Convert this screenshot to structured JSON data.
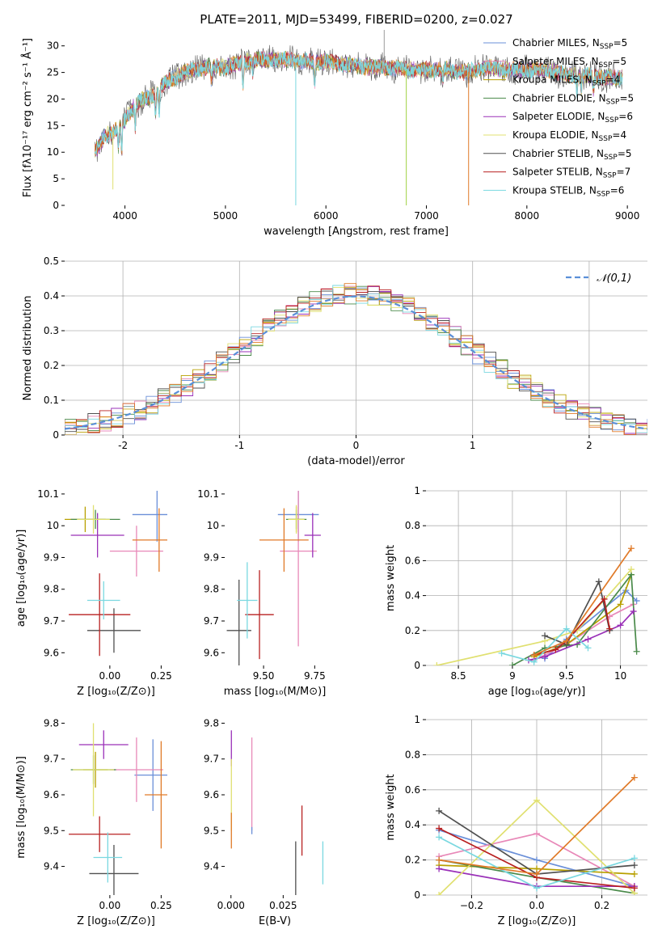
{
  "chart_data": [
    {
      "id": "spectrum",
      "type": "line",
      "title": "PLATE=2011, MJD=53499, FIBERID=0200, z=0.027",
      "xlabel": "wavelength [Angstrom, rest frame]",
      "ylabel": "Flux [fλ10⁻¹⁷ erg cm⁻² s⁻¹ Å⁻¹]",
      "xlim": [
        3400,
        9200
      ],
      "ylim": [
        0,
        33
      ],
      "xticks": [
        4000,
        5000,
        6000,
        7000,
        8000,
        9000
      ],
      "yticks": [
        0,
        5,
        10,
        15,
        20,
        25,
        30
      ],
      "grid": false,
      "legend_position": "top-right",
      "legend": [
        {
          "label": "Chabrier MILES, N",
          "sub": "SSP",
          "eq": "=5",
          "color": "#6a8fd8"
        },
        {
          "label": "Salpeter MILES, N",
          "sub": "SSP",
          "eq": "=5",
          "color": "#e888b8"
        },
        {
          "label": "Kroupa MILES, N",
          "sub": "SSP",
          "eq": "=4",
          "color": "#b8a000"
        },
        {
          "label": "Chabrier ELODIE, N",
          "sub": "SSP",
          "eq": "=5",
          "color": "#4a8a4a"
        },
        {
          "label": "Salpeter ELODIE, N",
          "sub": "SSP",
          "eq": "=6",
          "color": "#9a30b8"
        },
        {
          "label": "Kroupa ELODIE, N",
          "sub": "SSP",
          "eq": "=4",
          "color": "#e0e070"
        },
        {
          "label": "Chabrier STELIB, N",
          "sub": "SSP",
          "eq": "=5",
          "color": "#505050"
        },
        {
          "label": "Salpeter STELIB, N",
          "sub": "SSP",
          "eq": "=7",
          "color": "#b82020"
        },
        {
          "label": "Kroupa STELIB, N",
          "sub": "SSP",
          "eq": "=6",
          "color": "#7ad8e0"
        }
      ],
      "continuum": [
        [
          3700,
          10
        ],
        [
          3800,
          13
        ],
        [
          3900,
          14
        ],
        [
          4000,
          16
        ],
        [
          4100,
          19
        ],
        [
          4200,
          20
        ],
        [
          4300,
          21
        ],
        [
          4400,
          23
        ],
        [
          4500,
          24
        ],
        [
          4600,
          25
        ],
        [
          4800,
          26
        ],
        [
          5000,
          26
        ],
        [
          5200,
          27
        ],
        [
          5400,
          27.5
        ],
        [
          5600,
          27.5
        ],
        [
          5800,
          27
        ],
        [
          6000,
          27
        ],
        [
          6200,
          26.5
        ],
        [
          6400,
          26
        ],
        [
          6600,
          26
        ],
        [
          6800,
          25.5
        ],
        [
          7000,
          25.5
        ],
        [
          7200,
          25.5
        ],
        [
          7400,
          25
        ],
        [
          7600,
          26
        ],
        [
          7800,
          25.5
        ],
        [
          8000,
          25.5
        ],
        [
          8200,
          25.5
        ],
        [
          8400,
          24.5
        ],
        [
          8600,
          24.5
        ],
        [
          8800,
          24
        ],
        [
          8950,
          24
        ]
      ],
      "absorption_features": [
        [
          3934,
          4
        ],
        [
          3968,
          5
        ],
        [
          4102,
          4
        ],
        [
          4304,
          4
        ],
        [
          4341,
          4
        ],
        [
          4861,
          3
        ],
        [
          5175,
          4
        ],
        [
          5270,
          2
        ],
        [
          5890,
          4
        ],
        [
          7165,
          2
        ],
        [
          8498,
          3
        ],
        [
          8542,
          3
        ],
        [
          8662,
          3
        ]
      ],
      "spikes": [
        [
          5700,
          0
        ],
        [
          6580,
          33
        ],
        [
          6800,
          0
        ],
        [
          7420,
          0
        ],
        [
          3880,
          3
        ]
      ]
    },
    {
      "id": "residuals",
      "type": "histogram",
      "xlabel": "(data-model)/error",
      "ylabel": "Normed distribution",
      "xlim": [
        -2.5,
        2.5
      ],
      "ylim": [
        0,
        0.5
      ],
      "xticks": [
        -2,
        -1,
        0,
        1,
        2
      ],
      "yticks": [
        0,
        0.1,
        0.2,
        0.3,
        0.4,
        0.5
      ],
      "grid": true,
      "legend_position": "top-right",
      "reference_curve": {
        "label": "𝒩(0,1)",
        "color": "#5a8fd8",
        "style": "dashed",
        "mean": 0,
        "sd": 1
      },
      "bin_width": 0.1
    },
    {
      "id": "age-vs-Z",
      "type": "errorbar",
      "xlabel": "Z [log₁₀(Z/Z⊙)]",
      "ylabel": "age  [log₁₀(age/yr)]",
      "xlim": [
        -0.22,
        0.28
      ],
      "ylim": [
        9.56,
        10.11
      ],
      "xticks": [
        0.0,
        0.25
      ],
      "xticklabels": [
        "0.00",
        "0.25"
      ],
      "yticks": [
        9.6,
        9.7,
        9.8,
        9.9,
        10.0,
        10.1
      ],
      "points": [
        {
          "x": 0.23,
          "xerr": 0.12,
          "y": 10.035,
          "yerr": 0.085,
          "color": "#6a8fd8"
        },
        {
          "x": 0.13,
          "xerr": 0.13,
          "y": 9.92,
          "yerr": 0.08,
          "color": "#e888b8"
        },
        {
          "x": -0.12,
          "xerr": 0.1,
          "y": 10.02,
          "yerr": 0.04,
          "color": "#b8a000"
        },
        {
          "x": -0.07,
          "xerr": 0.12,
          "y": 10.02,
          "yerr": 0.03,
          "color": "#4a8a4a"
        },
        {
          "x": -0.06,
          "xerr": 0.13,
          "y": 9.97,
          "yerr": 0.07,
          "color": "#9a30b8"
        },
        {
          "x": -0.08,
          "xerr": 0.08,
          "y": 10.02,
          "yerr": 0.045,
          "color": "#e0e070"
        },
        {
          "x": 0.02,
          "xerr": 0.13,
          "y": 9.67,
          "yerr": 0.07,
          "color": "#505050"
        },
        {
          "x": -0.05,
          "xerr": 0.15,
          "y": 9.72,
          "yerr": 0.13,
          "color": "#b82020"
        },
        {
          "x": -0.03,
          "xerr": 0.08,
          "y": 9.765,
          "yerr": 0.06,
          "color": "#7ad8e0"
        },
        {
          "x": 0.24,
          "xerr": 0.13,
          "y": 9.955,
          "yerr": 0.1,
          "color": "#e07a28"
        }
      ]
    },
    {
      "id": "age-vs-mass",
      "type": "errorbar",
      "xlabel": "mass [log₁₀(M/M⊙)]",
      "ylabel": "",
      "xlim": [
        9.31,
        9.8
      ],
      "ylim": [
        9.56,
        10.11
      ],
      "xticks": [
        9.5,
        9.75
      ],
      "xticklabels": [
        "9.50",
        "9.75"
      ],
      "yticks": [
        9.6,
        9.7,
        9.8,
        9.9,
        10.0,
        10.1
      ],
      "points": [
        {
          "x": 9.67,
          "xerr": 0.1,
          "y": 10.035,
          "yerr": 0.085,
          "color": "#6a8fd8"
        },
        {
          "x": 9.67,
          "xerr": 0.09,
          "y": 9.92,
          "yerr": 0.3,
          "color": "#e888b8"
        },
        {
          "x": 9.66,
          "xerr": 0.04,
          "y": 10.02,
          "yerr": 0.04,
          "color": "#b8a000"
        },
        {
          "x": 9.66,
          "xerr": 0.05,
          "y": 10.02,
          "yerr": 0.03,
          "color": "#4a8a4a"
        },
        {
          "x": 9.74,
          "xerr": 0.04,
          "y": 9.97,
          "yerr": 0.07,
          "color": "#9a30b8"
        },
        {
          "x": 9.66,
          "xerr": 0.04,
          "y": 10.02,
          "yerr": 0.045,
          "color": "#e0e070"
        },
        {
          "x": 9.38,
          "xerr": 0.06,
          "y": 9.67,
          "yerr": 0.16,
          "color": "#505050"
        },
        {
          "x": 9.48,
          "xerr": 0.07,
          "y": 9.72,
          "yerr": 0.14,
          "color": "#b82020"
        },
        {
          "x": 9.42,
          "xerr": 0.05,
          "y": 9.765,
          "yerr": 0.12,
          "color": "#7ad8e0"
        },
        {
          "x": 9.6,
          "xerr": 0.12,
          "y": 9.955,
          "yerr": 0.1,
          "color": "#e07a28"
        }
      ]
    },
    {
      "id": "mass-weight-vs-age",
      "type": "line",
      "xlabel": "age  [log₁₀(age/yr)]",
      "ylabel": "mass weight",
      "xlim": [
        8.2,
        10.25
      ],
      "ylim": [
        0,
        1.0
      ],
      "xticks": [
        8.5,
        9.0,
        9.5,
        10.0
      ],
      "yticks": [
        0,
        0.2,
        0.4,
        0.6,
        0.8,
        1.0
      ],
      "grid": true,
      "series": [
        {
          "color": "#6a8fd8",
          "points": [
            [
              9.3,
              0.04
            ],
            [
              9.5,
              0.15
            ],
            [
              10.05,
              0.43
            ],
            [
              10.15,
              0.37
            ]
          ]
        },
        {
          "color": "#e888b8",
          "points": [
            [
              9.2,
              0.03
            ],
            [
              9.5,
              0.12
            ],
            [
              9.9,
              0.28
            ],
            [
              10.12,
              0.35
            ]
          ]
        },
        {
          "color": "#b8a000",
          "points": [
            [
              9.2,
              0.05
            ],
            [
              9.5,
              0.12
            ],
            [
              10.0,
              0.35
            ],
            [
              10.1,
              0.52
            ]
          ]
        },
        {
          "color": "#4a8a4a",
          "points": [
            [
              9.0,
              0.0
            ],
            [
              9.3,
              0.1
            ],
            [
              9.6,
              0.12
            ],
            [
              10.1,
              0.52
            ],
            [
              10.15,
              0.08
            ]
          ]
        },
        {
          "color": "#9a30b8",
          "points": [
            [
              9.15,
              0.03
            ],
            [
              9.3,
              0.05
            ],
            [
              9.7,
              0.15
            ],
            [
              10.0,
              0.23
            ],
            [
              10.12,
              0.31
            ]
          ]
        },
        {
          "color": "#e0e070",
          "points": [
            [
              8.3,
              0.0
            ],
            [
              9.3,
              0.14
            ],
            [
              9.6,
              0.2
            ],
            [
              10.1,
              0.55
            ]
          ]
        },
        {
          "color": "#505050",
          "points": [
            [
              9.3,
              0.17
            ],
            [
              9.5,
              0.12
            ],
            [
              9.8,
              0.48
            ],
            [
              9.9,
              0.2
            ]
          ]
        },
        {
          "color": "#b82020",
          "points": [
            [
              9.2,
              0.06
            ],
            [
              9.4,
              0.09
            ],
            [
              9.5,
              0.14
            ],
            [
              9.85,
              0.38
            ],
            [
              9.9,
              0.21
            ]
          ]
        },
        {
          "color": "#7ad8e0",
          "points": [
            [
              8.9,
              0.07
            ],
            [
              9.2,
              0.02
            ],
            [
              9.5,
              0.21
            ],
            [
              9.7,
              0.1
            ]
          ]
        },
        {
          "color": "#e07a28",
          "points": [
            [
              9.2,
              0.06
            ],
            [
              9.5,
              0.14
            ],
            [
              10.1,
              0.67
            ]
          ]
        }
      ]
    },
    {
      "id": "mass-vs-Z",
      "type": "errorbar",
      "xlabel": "Z [log₁₀(Z/Z⊙)]",
      "ylabel": "mass [log₁₀(M/M⊙)]",
      "xlim": [
        -0.22,
        0.28
      ],
      "ylim": [
        9.32,
        9.81
      ],
      "xticks": [
        0.0,
        0.25
      ],
      "xticklabels": [
        "0.00",
        "0.25"
      ],
      "yticks": [
        9.4,
        9.5,
        9.6,
        9.7,
        9.8
      ],
      "points": [
        {
          "x": 0.21,
          "xerr": 0.09,
          "y": 9.655,
          "yerr": 0.1,
          "color": "#6a8fd8"
        },
        {
          "x": 0.13,
          "xerr": 0.13,
          "y": 9.67,
          "yerr": 0.09,
          "color": "#e888b8"
        },
        {
          "x": -0.07,
          "xerr": 0.06,
          "y": 9.67,
          "yerr": 0.05,
          "color": "#b8a000"
        },
        {
          "x": -0.08,
          "xerr": 0.11,
          "y": 9.67,
          "yerr": 0.04,
          "color": "#4a8a4a"
        },
        {
          "x": -0.03,
          "xerr": 0.12,
          "y": 9.74,
          "yerr": 0.04,
          "color": "#9a30b8"
        },
        {
          "x": -0.08,
          "xerr": 0.1,
          "y": 9.67,
          "yerr": 0.13,
          "color": "#e0e070"
        },
        {
          "x": 0.02,
          "xerr": 0.12,
          "y": 9.38,
          "yerr": 0.08,
          "color": "#505050"
        },
        {
          "x": -0.05,
          "xerr": 0.15,
          "y": 9.49,
          "yerr": 0.05,
          "color": "#b82020"
        },
        {
          "x": -0.01,
          "xerr": 0.07,
          "y": 9.425,
          "yerr": 0.07,
          "color": "#7ad8e0"
        },
        {
          "x": 0.25,
          "xerr": 0.08,
          "y": 9.6,
          "yerr": 0.15,
          "color": "#e07a28"
        }
      ]
    },
    {
      "id": "mass-vs-EBV",
      "type": "errorbar",
      "xlabel": "E(B-V)",
      "ylabel": "",
      "xlim": [
        -0.003,
        0.045
      ],
      "ylim": [
        9.32,
        9.81
      ],
      "xticks": [
        0.0,
        0.025
      ],
      "xticklabels": [
        "0.000",
        "0.025"
      ],
      "yticks": [
        9.4,
        9.5,
        9.6,
        9.7,
        9.8
      ],
      "points": [
        {
          "x": 0.0002,
          "xerr": 0,
          "y": 9.73,
          "yerr": 0.05,
          "color": "#9a30b8"
        },
        {
          "x": 0.0002,
          "xerr": 0,
          "y": 9.6,
          "yerr": 0.1,
          "color": "#e0e070"
        },
        {
          "x": 0.0002,
          "xerr": 0,
          "y": 9.5,
          "yerr": 0.05,
          "color": "#e07a28"
        },
        {
          "x": 0.01,
          "xerr": 0,
          "y": 9.63,
          "yerr": 0.13,
          "color": "#e888b8"
        },
        {
          "x": 0.01,
          "xerr": 0,
          "y": 9.5,
          "yerr": 0.01,
          "color": "#6a8fd8"
        },
        {
          "x": 0.031,
          "xerr": 0,
          "y": 9.37,
          "yerr": 0.1,
          "color": "#505050"
        },
        {
          "x": 0.034,
          "xerr": 0,
          "y": 9.5,
          "yerr": 0.07,
          "color": "#b82020"
        },
        {
          "x": 0.044,
          "xerr": 0,
          "y": 9.41,
          "yerr": 0.06,
          "color": "#7ad8e0"
        }
      ]
    },
    {
      "id": "mass-weight-vs-Z",
      "type": "line",
      "xlabel": "Z [log₁₀(Z/Z⊙)]",
      "ylabel": "mass weight",
      "xlim": [
        -0.34,
        0.34
      ],
      "ylim": [
        0,
        1.0
      ],
      "xticks": [
        -0.2,
        0.0,
        0.2
      ],
      "xticklabels": [
        "−0.2",
        "0.0",
        "0.2"
      ],
      "yticks": [
        0,
        0.2,
        0.4,
        0.6,
        0.8,
        1.0
      ],
      "grid": true,
      "series": [
        {
          "color": "#6a8fd8",
          "points": [
            [
              -0.3,
              0.37
            ],
            [
              0.0,
              0.2
            ],
            [
              0.3,
              0.05
            ]
          ]
        },
        {
          "color": "#e888b8",
          "points": [
            [
              -0.3,
              0.22
            ],
            [
              0.0,
              0.35
            ],
            [
              0.3,
              0.05
            ]
          ]
        },
        {
          "color": "#b8a000",
          "points": [
            [
              -0.3,
              0.17
            ],
            [
              0.0,
              0.15
            ],
            [
              0.3,
              0.12
            ]
          ]
        },
        {
          "color": "#4a8a4a",
          "points": [
            [
              -0.3,
              0.2
            ],
            [
              0.0,
              0.1
            ],
            [
              0.3,
              0.01
            ]
          ]
        },
        {
          "color": "#9a30b8",
          "points": [
            [
              -0.3,
              0.15
            ],
            [
              0.0,
              0.05
            ],
            [
              0.3,
              0.05
            ]
          ]
        },
        {
          "color": "#e0e070",
          "points": [
            [
              -0.3,
              0.0
            ],
            [
              0.0,
              0.54
            ],
            [
              0.3,
              0.01
            ]
          ]
        },
        {
          "color": "#505050",
          "points": [
            [
              -0.3,
              0.48
            ],
            [
              0.0,
              0.12
            ],
            [
              0.3,
              0.17
            ]
          ]
        },
        {
          "color": "#b82020",
          "points": [
            [
              -0.3,
              0.38
            ],
            [
              0.0,
              0.1
            ],
            [
              0.3,
              0.04
            ]
          ]
        },
        {
          "color": "#7ad8e0",
          "points": [
            [
              -0.3,
              0.33
            ],
            [
              0.0,
              0.04
            ],
            [
              0.3,
              0.21
            ]
          ]
        },
        {
          "color": "#e07a28",
          "points": [
            [
              -0.3,
              0.2
            ],
            [
              0.0,
              0.12
            ],
            [
              0.3,
              0.67
            ]
          ]
        }
      ]
    }
  ]
}
